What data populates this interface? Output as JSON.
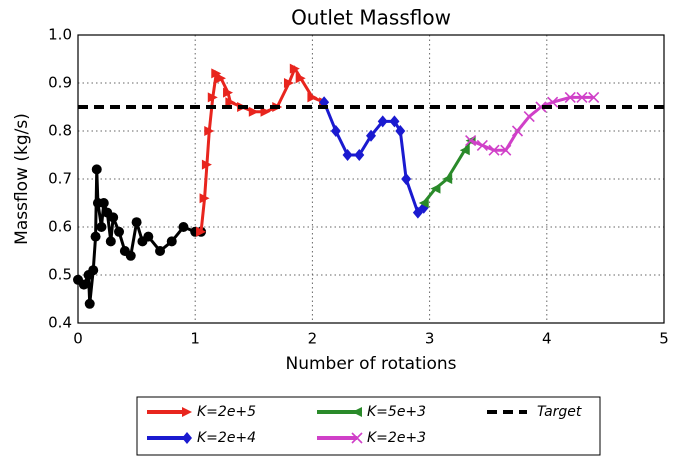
{
  "chart_data": {
    "type": "line",
    "title": "Outlet Massflow",
    "xlabel": "Number of rotations",
    "ylabel": "Massflow (kg/s)",
    "xlim": [
      0,
      5
    ],
    "ylim": [
      0.4,
      1.0
    ],
    "xticks": [
      0,
      1,
      2,
      3,
      4,
      5
    ],
    "yticks": [
      0.4,
      0.5,
      0.6,
      0.7,
      0.8,
      0.9,
      {
        "value": 1,
        "label": "1.0"
      }
    ],
    "grid": true,
    "legend": "below",
    "series": [
      {
        "color": "#000000",
        "marker": "circle",
        "x": [
          0,
          0.05,
          0.09,
          0.1,
          0.13,
          0.15,
          0.16,
          0.17,
          0.2,
          0.22,
          0.25,
          0.28,
          0.3,
          0.35,
          0.4,
          0.45,
          0.5,
          0.55,
          0.6,
          0.7,
          0.8,
          0.9,
          1.0,
          1.05
        ],
        "values": [
          0.49,
          0.48,
          0.5,
          0.44,
          0.51,
          0.58,
          0.72,
          0.65,
          0.6,
          0.65,
          0.63,
          0.57,
          0.62,
          0.59,
          0.55,
          0.54,
          0.61,
          0.57,
          0.58,
          0.55,
          0.57,
          0.6,
          0.59,
          0.59
        ]
      },
      {
        "name": "K=2e+5",
        "color": "#e8251e",
        "marker": "triangle-right",
        "x": [
          1.05,
          1.08,
          1.1,
          1.12,
          1.15,
          1.18,
          1.22,
          1.28,
          1.3,
          1.4,
          1.5,
          1.6,
          1.7,
          1.8,
          1.85,
          1.9,
          2.0,
          2.1
        ],
        "values": [
          0.59,
          0.66,
          0.73,
          0.8,
          0.87,
          0.92,
          0.91,
          0.88,
          0.86,
          0.85,
          0.84,
          0.84,
          0.85,
          0.9,
          0.93,
          0.91,
          0.87,
          0.86
        ]
      },
      {
        "name": "K=2e+4",
        "color": "#1a1ad0",
        "marker": "diamond",
        "x": [
          2.1,
          2.2,
          2.3,
          2.4,
          2.5,
          2.6,
          2.7,
          2.75,
          2.8,
          2.9,
          2.95
        ],
        "values": [
          0.86,
          0.8,
          0.75,
          0.75,
          0.79,
          0.82,
          0.82,
          0.8,
          0.7,
          0.63,
          0.64
        ]
      },
      {
        "name": "K=5e+3",
        "color": "#2a8a2a",
        "marker": "triangle-left",
        "x": [
          2.95,
          3.05,
          3.15,
          3.3,
          3.35
        ],
        "values": [
          0.65,
          0.68,
          0.7,
          0.76,
          0.78
        ]
      },
      {
        "name": "K=2e+3",
        "color": "#d040c8",
        "marker": "x",
        "x": [
          3.35,
          3.45,
          3.55,
          3.65,
          3.75,
          3.85,
          3.95,
          4.05,
          4.2,
          4.3,
          4.4
        ],
        "values": [
          0.78,
          0.77,
          0.76,
          0.76,
          0.8,
          0.83,
          0.85,
          0.86,
          0.87,
          0.87,
          0.87
        ]
      },
      {
        "name": "Target",
        "color": "#000000",
        "dash": true,
        "x": [
          0,
          5
        ],
        "values": [
          0.85,
          0.85
        ]
      }
    ]
  }
}
